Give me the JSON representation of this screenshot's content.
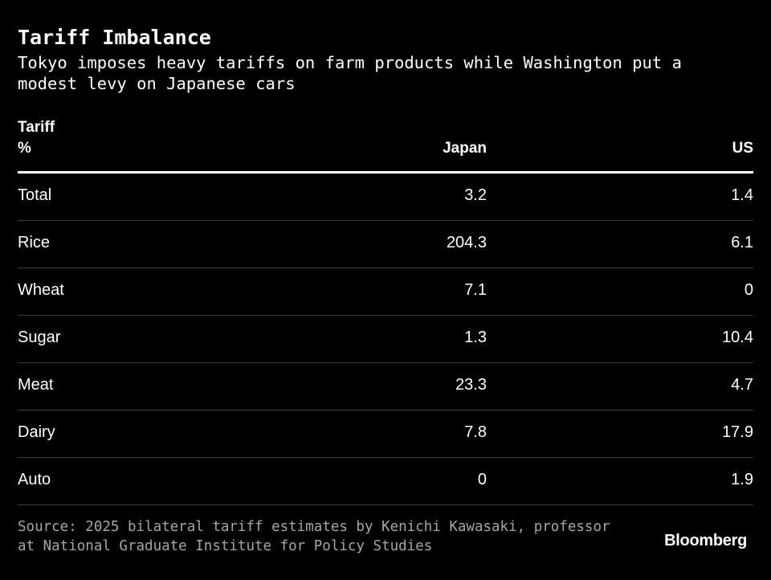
{
  "chart_data": {
    "type": "table",
    "title": "Tariff Imbalance",
    "subtitle": "Tokyo imposes heavy tariffs on farm products while Washington put a modest levy on Japanese cars",
    "header": {
      "label_line1": "Tariff",
      "label_line2": "%",
      "japan": "Japan",
      "us": "US"
    },
    "columns": [
      "Tariff %",
      "Japan",
      "US"
    ],
    "rows": [
      {
        "category": "Total",
        "japan": "3.2",
        "us": "1.4"
      },
      {
        "category": "Rice",
        "japan": "204.3",
        "us": "6.1"
      },
      {
        "category": "Wheat",
        "japan": "7.1",
        "us": "0"
      },
      {
        "category": "Sugar",
        "japan": "1.3",
        "us": "10.4"
      },
      {
        "category": "Meat",
        "japan": "23.3",
        "us": "4.7"
      },
      {
        "category": "Dairy",
        "japan": "7.8",
        "us": "17.9"
      },
      {
        "category": "Auto",
        "japan": "0",
        "us": "1.9"
      }
    ],
    "source": "Source: 2025 bilateral tariff estimates by Kenichi Kawasaki, professor at National Graduate Institute for Policy Studies",
    "logo": "Bloomberg"
  },
  "colors": {
    "background": "#000000",
    "text": "#ffffff",
    "source_text": "#a6a6a6",
    "row_divider": "#3a3a3a",
    "header_rule": "#ffffff"
  }
}
